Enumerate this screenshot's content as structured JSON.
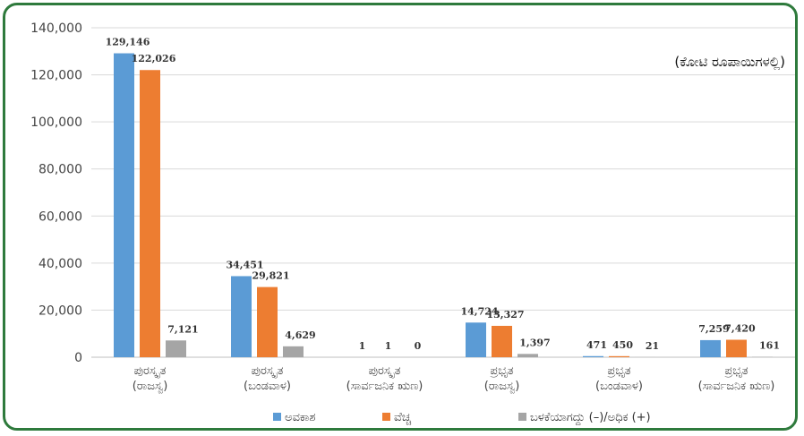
{
  "chart_data": {
    "type": "bar",
    "unit_note": "(ಕೋಟಿ ರೂಪಾಯಿಗಳಲ್ಲಿ)",
    "ylim": [
      0,
      140000
    ],
    "yticks": [
      "0",
      "20,000",
      "40,000",
      "60,000",
      "80,000",
      "100,000",
      "120,000",
      "140,000"
    ],
    "ytick_values": [
      0,
      20000,
      40000,
      60000,
      80000,
      100000,
      120000,
      140000
    ],
    "grid": true,
    "legend_position": "bottom",
    "categories": [
      [
        "ಪುರಸ್ಕೃತ",
        "(ರಾಜಸ್ವ)"
      ],
      [
        "ಪುರಸ್ಕೃತ",
        "(ಬಂಡವಾಳ)"
      ],
      [
        "ಪುರಸ್ಕೃತ",
        "(ಸಾರ್ವಜನಿಕ ಋಣ)"
      ],
      [
        "ಪ್ರಭೃತ",
        "(ರಾಜಸ್ವ)"
      ],
      [
        "ಪ್ರಭೃತ",
        "(ಬಂಡವಾಳ)"
      ],
      [
        "ಪ್ರಭೃತ",
        "(ಸಾರ್ವಜನಿಕ ಋಣ)"
      ]
    ],
    "series": [
      {
        "name": "ಅವಕಾಶ",
        "color": "#5b9bd5",
        "values": [
          129146,
          34451,
          1,
          14724,
          471,
          7259
        ],
        "labels": [
          "129,146",
          "34,451",
          "1",
          "14,724",
          "471",
          "7,259"
        ]
      },
      {
        "name": "ವೆಚ್ಚ",
        "color": "#ed7d31",
        "values": [
          122026,
          29821,
          1,
          13327,
          450,
          7420
        ],
        "labels": [
          "122,026",
          "29,821",
          "1",
          "13,327",
          "450",
          "7,420"
        ]
      },
      {
        "name": "ಬಳಕೆಯಾಗದ್ದು (–)/ಅಧಿಕ (+)",
        "color": "#a5a5a5",
        "values": [
          7121,
          4629,
          0,
          1397,
          21,
          161
        ],
        "labels": [
          "7,121",
          "4,629",
          "0",
          "1,397",
          "21",
          "161"
        ]
      }
    ]
  }
}
